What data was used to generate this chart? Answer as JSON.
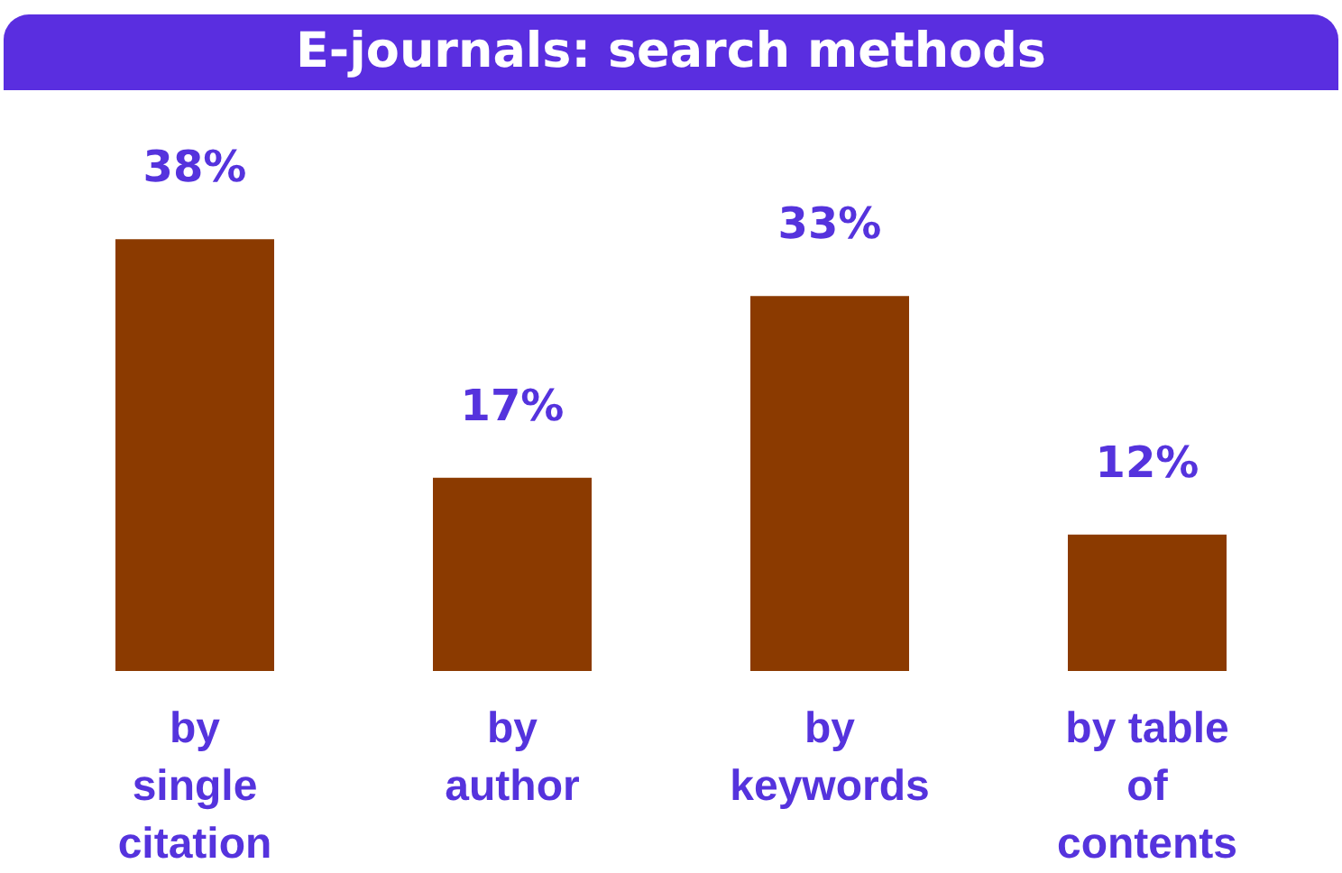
{
  "chart_data": {
    "type": "bar",
    "title": "E-journals:  search methods",
    "categories": [
      "by single citation",
      "by author",
      "by keywords",
      "by table of contents"
    ],
    "values": [
      38,
      17,
      33,
      12
    ],
    "value_labels": [
      "38%",
      "17%",
      "33%",
      "12%"
    ],
    "color": "#8b3a00"
  }
}
